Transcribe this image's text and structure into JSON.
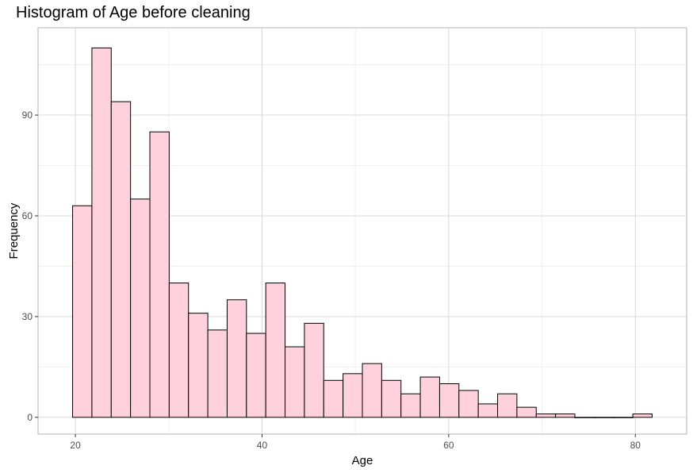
{
  "chart_data": {
    "type": "bar",
    "title": "Histogram of Age before cleaning",
    "xlabel": "Age",
    "ylabel": "Frequency",
    "bin_edges": [
      19.7,
      21.77,
      23.84,
      25.91,
      27.98,
      30.05,
      32.12,
      34.19,
      36.26,
      38.33,
      40.4,
      42.47,
      44.54,
      46.61,
      48.68,
      50.75,
      52.82,
      54.89,
      56.96,
      59.03,
      61.1,
      63.17,
      65.24,
      67.31,
      69.38,
      71.45,
      73.52,
      75.59,
      77.66,
      79.73,
      81.8
    ],
    "values": [
      63,
      110,
      94,
      65,
      85,
      40,
      31,
      26,
      35,
      25,
      40,
      21,
      28,
      11,
      13,
      16,
      11,
      7,
      12,
      10,
      8,
      4,
      7,
      3,
      1,
      1,
      0,
      0,
      0,
      1
    ],
    "xlim": [
      16.0,
      85.5
    ],
    "ylim": [
      -5,
      116
    ],
    "x_ticks": [
      20,
      40,
      60,
      80
    ],
    "y_ticks": [
      0,
      30,
      60,
      90
    ],
    "x_minor_ticks": [
      30,
      50,
      70
    ],
    "y_minor_ticks": [
      15,
      45,
      75,
      105
    ],
    "bar_fill": "#FFD1DC",
    "bar_stroke": "#000000",
    "grid": true,
    "grid_color": "#d9d9d9",
    "panel_border_color": "#b3b3b3"
  }
}
